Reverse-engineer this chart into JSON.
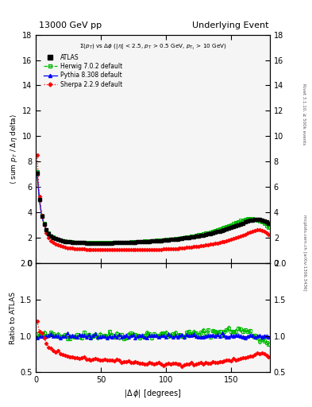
{
  "title_left": "13000 GeV pp",
  "title_right": "Underlying Event",
  "xlabel": "|#Delta #phi| [degrees]",
  "ylabel_main": "#langle sum p_{T} / #Delta#eta delta#rangle",
  "ylabel_ratio": "Ratio to ATLAS",
  "right_label_top": "Rivet 3.1.10, #geq 500k events",
  "right_label_bot": "mcplots.cern.ch [arXiv:1306.3436]",
  "xlim": [
    0,
    180
  ],
  "ylim_main": [
    0,
    18
  ],
  "ylim_ratio": [
    0.5,
    2.0
  ],
  "yticks_main": [
    0,
    2,
    4,
    6,
    8,
    10,
    12,
    14,
    16,
    18
  ],
  "yticks_ratio": [
    0.5,
    1.0,
    1.5,
    2.0
  ],
  "xticks": [
    0,
    50,
    100,
    150
  ],
  "colors": {
    "atlas": "#000000",
    "herwig": "#00bb00",
    "pythia": "#0000ff",
    "sherpa": "#ff0000"
  },
  "series_x": [
    0.9,
    2.7,
    4.5,
    6.3,
    8.1,
    9.9,
    11.7,
    13.5,
    15.3,
    17.1,
    18.9,
    20.7,
    22.5,
    24.3,
    26.1,
    27.9,
    29.7,
    31.5,
    33.3,
    35.1,
    36.9,
    38.7,
    40.5,
    42.3,
    44.1,
    45.9,
    47.7,
    49.5,
    51.3,
    53.1,
    54.9,
    56.7,
    58.5,
    60.3,
    62.1,
    63.9,
    65.7,
    67.5,
    69.3,
    71.1,
    72.9,
    74.7,
    76.5,
    78.3,
    80.1,
    81.9,
    83.7,
    85.5,
    87.3,
    89.1,
    90.9,
    92.7,
    94.5,
    96.3,
    98.1,
    99.9,
    101.7,
    103.5,
    105.3,
    107.1,
    108.9,
    110.7,
    112.5,
    114.3,
    116.1,
    117.9,
    119.7,
    121.5,
    123.3,
    125.1,
    126.9,
    128.7,
    130.5,
    132.3,
    134.1,
    135.9,
    137.7,
    139.5,
    141.3,
    143.1,
    144.9,
    146.7,
    148.5,
    150.3,
    152.1,
    153.9,
    155.7,
    157.5,
    159.3,
    161.1,
    162.9,
    164.7,
    166.5,
    168.3,
    170.1,
    171.9,
    173.7,
    175.5,
    177.3,
    179.1
  ],
  "atlas_y": [
    7.1,
    5.0,
    3.7,
    3.1,
    2.65,
    2.35,
    2.15,
    2.05,
    1.95,
    1.88,
    1.82,
    1.78,
    1.74,
    1.71,
    1.69,
    1.67,
    1.65,
    1.64,
    1.63,
    1.62,
    1.62,
    1.61,
    1.61,
    1.6,
    1.6,
    1.6,
    1.6,
    1.6,
    1.6,
    1.6,
    1.6,
    1.61,
    1.61,
    1.62,
    1.62,
    1.63,
    1.63,
    1.64,
    1.65,
    1.65,
    1.66,
    1.67,
    1.68,
    1.69,
    1.7,
    1.71,
    1.72,
    1.73,
    1.74,
    1.75,
    1.76,
    1.78,
    1.79,
    1.8,
    1.82,
    1.83,
    1.85,
    1.87,
    1.89,
    1.91,
    1.93,
    1.95,
    1.97,
    2.0,
    2.02,
    2.05,
    2.08,
    2.11,
    2.14,
    2.17,
    2.2,
    2.24,
    2.28,
    2.32,
    2.36,
    2.4,
    2.45,
    2.5,
    2.55,
    2.6,
    2.65,
    2.71,
    2.77,
    2.83,
    2.9,
    2.97,
    3.04,
    3.11,
    3.18,
    3.25,
    3.31,
    3.37,
    3.42,
    3.45,
    3.47,
    3.46,
    3.42,
    3.36,
    3.28,
    3.18
  ],
  "herwig_y": [
    7.2,
    5.05,
    3.75,
    3.12,
    2.68,
    2.38,
    2.18,
    2.07,
    1.97,
    1.9,
    1.84,
    1.8,
    1.76,
    1.73,
    1.71,
    1.69,
    1.67,
    1.66,
    1.65,
    1.64,
    1.64,
    1.63,
    1.63,
    1.62,
    1.62,
    1.62,
    1.62,
    1.62,
    1.62,
    1.62,
    1.62,
    1.63,
    1.63,
    1.64,
    1.64,
    1.65,
    1.65,
    1.66,
    1.67,
    1.68,
    1.69,
    1.7,
    1.71,
    1.72,
    1.73,
    1.74,
    1.75,
    1.76,
    1.77,
    1.78,
    1.79,
    1.81,
    1.82,
    1.84,
    1.85,
    1.87,
    1.89,
    1.91,
    1.93,
    1.95,
    1.97,
    1.99,
    2.02,
    2.05,
    2.08,
    2.11,
    2.14,
    2.17,
    2.21,
    2.25,
    2.29,
    2.33,
    2.38,
    2.43,
    2.48,
    2.53,
    2.59,
    2.65,
    2.71,
    2.77,
    2.84,
    2.91,
    2.98,
    3.05,
    3.13,
    3.21,
    3.29,
    3.37,
    3.43,
    3.48,
    3.52,
    3.54,
    3.53,
    3.49,
    3.43,
    3.35,
    3.25,
    3.12,
    2.98,
    2.84
  ],
  "pythia_y": [
    7.1,
    5.0,
    3.7,
    3.1,
    2.65,
    2.35,
    2.15,
    2.05,
    1.95,
    1.88,
    1.82,
    1.78,
    1.74,
    1.71,
    1.69,
    1.67,
    1.65,
    1.64,
    1.63,
    1.62,
    1.62,
    1.61,
    1.61,
    1.6,
    1.6,
    1.6,
    1.6,
    1.6,
    1.6,
    1.6,
    1.6,
    1.61,
    1.61,
    1.62,
    1.62,
    1.63,
    1.63,
    1.64,
    1.65,
    1.65,
    1.66,
    1.67,
    1.68,
    1.69,
    1.7,
    1.71,
    1.72,
    1.73,
    1.74,
    1.75,
    1.76,
    1.78,
    1.79,
    1.8,
    1.82,
    1.83,
    1.85,
    1.87,
    1.89,
    1.91,
    1.93,
    1.95,
    1.97,
    2.0,
    2.02,
    2.05,
    2.08,
    2.11,
    2.14,
    2.17,
    2.2,
    2.24,
    2.28,
    2.32,
    2.36,
    2.4,
    2.45,
    2.5,
    2.55,
    2.6,
    2.65,
    2.71,
    2.77,
    2.83,
    2.9,
    2.97,
    3.04,
    3.11,
    3.18,
    3.25,
    3.31,
    3.37,
    3.42,
    3.45,
    3.47,
    3.46,
    3.42,
    3.36,
    3.28,
    3.18
  ],
  "sherpa_y": [
    8.5,
    5.3,
    3.8,
    3.0,
    2.4,
    2.0,
    1.78,
    1.63,
    1.52,
    1.44,
    1.37,
    1.32,
    1.27,
    1.24,
    1.21,
    1.19,
    1.17,
    1.15,
    1.14,
    1.13,
    1.12,
    1.11,
    1.1,
    1.1,
    1.09,
    1.09,
    1.08,
    1.08,
    1.08,
    1.08,
    1.07,
    1.07,
    1.07,
    1.07,
    1.07,
    1.07,
    1.07,
    1.07,
    1.07,
    1.07,
    1.07,
    1.07,
    1.07,
    1.07,
    1.07,
    1.07,
    1.08,
    1.08,
    1.08,
    1.09,
    1.09,
    1.1,
    1.1,
    1.11,
    1.12,
    1.13,
    1.14,
    1.15,
    1.16,
    1.17,
    1.18,
    1.2,
    1.21,
    1.23,
    1.25,
    1.27,
    1.29,
    1.31,
    1.33,
    1.35,
    1.38,
    1.41,
    1.44,
    1.47,
    1.5,
    1.53,
    1.57,
    1.61,
    1.65,
    1.69,
    1.74,
    1.79,
    1.84,
    1.89,
    1.95,
    2.01,
    2.08,
    2.15,
    2.22,
    2.3,
    2.37,
    2.44,
    2.51,
    2.57,
    2.62,
    2.64,
    2.6,
    2.52,
    2.4,
    2.26
  ],
  "herwig_ratio_base": [
    1.015,
    1.01,
    1.013,
    1.007,
    1.013,
    1.013,
    1.014,
    1.01,
    1.011,
    1.011,
    1.011,
    1.011,
    1.012,
    1.012,
    1.012,
    1.012,
    1.012,
    1.012,
    1.012,
    1.012,
    1.012,
    1.012,
    1.013,
    1.013,
    1.013,
    1.013,
    1.013,
    1.013,
    1.013,
    1.013,
    1.013,
    1.013,
    1.013,
    1.013,
    1.013,
    1.013,
    1.013,
    1.013,
    1.013,
    1.018,
    1.018,
    1.018,
    1.018,
    1.018,
    1.018,
    1.018,
    1.018,
    1.018,
    1.018,
    1.018,
    1.018,
    1.018,
    1.018,
    1.018,
    1.018,
    1.022,
    1.022,
    1.021,
    1.021,
    1.021,
    1.021,
    1.021,
    1.025,
    1.025,
    1.03,
    1.03,
    1.03,
    1.03,
    1.032,
    1.037,
    1.041,
    1.04,
    1.044,
    1.048,
    1.051,
    1.054,
    1.057,
    1.06,
    1.063,
    1.065,
    1.07,
    1.074,
    1.075,
    1.078,
    1.079,
    1.081,
    1.082,
    1.083,
    1.08,
    1.072,
    1.063,
    1.051,
    1.023,
    1.012,
    0.988,
    0.966,
    0.951,
    0.929,
    0.908,
    0.893
  ],
  "pythia_ratio_base": [
    1.0,
    1.0,
    1.0,
    1.0,
    1.0,
    1.0,
    1.0,
    1.0,
    1.0,
    1.0,
    1.0,
    1.0,
    1.0,
    1.0,
    1.0,
    1.0,
    1.0,
    1.0,
    1.0,
    1.0,
    1.0,
    1.0,
    1.0,
    1.0,
    1.0,
    1.0,
    1.0,
    1.0,
    1.0,
    1.0,
    1.0,
    1.0,
    1.0,
    1.0,
    1.0,
    1.0,
    1.0,
    1.0,
    1.0,
    1.0,
    1.0,
    1.0,
    1.0,
    1.0,
    1.0,
    1.0,
    1.0,
    1.0,
    1.0,
    1.0,
    1.0,
    1.0,
    1.0,
    1.0,
    1.0,
    1.0,
    1.0,
    1.0,
    1.0,
    1.0,
    1.0,
    1.0,
    1.0,
    1.0,
    1.0,
    1.0,
    1.0,
    1.0,
    1.0,
    1.0,
    1.0,
    1.0,
    1.0,
    1.0,
    1.0,
    1.0,
    1.0,
    1.0,
    1.0,
    1.0,
    1.0,
    1.0,
    1.0,
    1.0,
    1.0,
    1.0,
    1.0,
    1.0,
    1.0,
    1.0,
    1.0,
    1.0,
    1.0,
    1.0,
    1.0,
    1.0,
    1.0,
    1.0,
    1.0,
    1.0
  ],
  "sherpa_ratio_base": [
    1.2,
    1.06,
    1.03,
    0.97,
    0.91,
    0.85,
    0.83,
    0.8,
    0.78,
    0.77,
    0.75,
    0.74,
    0.73,
    0.72,
    0.72,
    0.71,
    0.71,
    0.7,
    0.7,
    0.7,
    0.69,
    0.69,
    0.68,
    0.68,
    0.68,
    0.68,
    0.68,
    0.68,
    0.68,
    0.68,
    0.67,
    0.67,
    0.67,
    0.66,
    0.66,
    0.66,
    0.65,
    0.65,
    0.65,
    0.65,
    0.64,
    0.64,
    0.64,
    0.63,
    0.63,
    0.63,
    0.62,
    0.62,
    0.62,
    0.62,
    0.62,
    0.62,
    0.62,
    0.61,
    0.61,
    0.62,
    0.62,
    0.62,
    0.62,
    0.62,
    0.62,
    0.62,
    0.61,
    0.61,
    0.62,
    0.62,
    0.62,
    0.62,
    0.62,
    0.62,
    0.63,
    0.63,
    0.63,
    0.63,
    0.63,
    0.64,
    0.64,
    0.64,
    0.65,
    0.65,
    0.66,
    0.66,
    0.66,
    0.67,
    0.67,
    0.68,
    0.68,
    0.69,
    0.7,
    0.71,
    0.72,
    0.73,
    0.73,
    0.74,
    0.76,
    0.76,
    0.76,
    0.75,
    0.73,
    0.71
  ],
  "bg_color": "#f5f5f5",
  "marker_size": 3.0
}
